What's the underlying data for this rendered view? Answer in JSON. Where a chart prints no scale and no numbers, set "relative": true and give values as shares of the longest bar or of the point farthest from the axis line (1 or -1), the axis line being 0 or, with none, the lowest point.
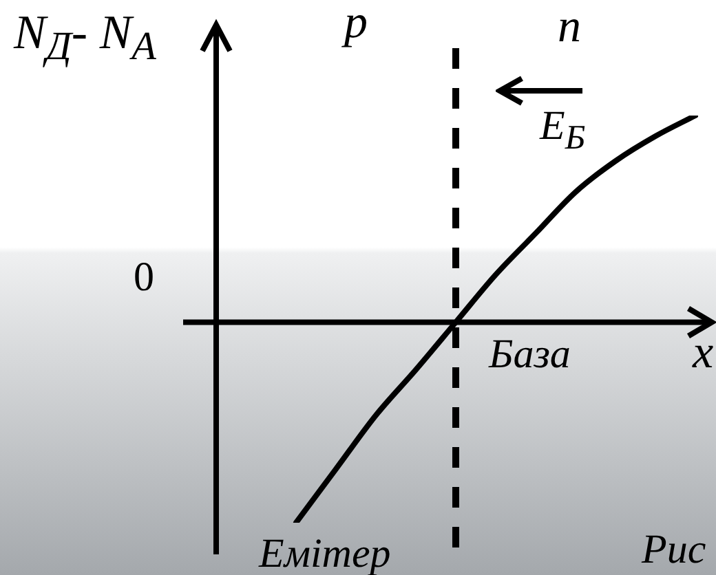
{
  "chart_data": {
    "type": "line",
    "ylabel": "N$_{Д}$- N$_{А}$",
    "xlabel": "x",
    "categories": [
      null,
      null,
      null,
      null,
      null,
      null,
      null,
      null,
      null,
      null,
      null,
      null,
      null
    ],
    "series": [
      {
        "color": "#000000",
        "values": [
          null,
          null,
          -0.97,
          -0.71,
          -0.45,
          -0.23,
          0,
          0.23,
          0.43,
          0.63,
          0.78,
          0.9,
          1
        ]
      }
    ],
    "relative": true,
    "annotations": [
      "p",
      "n",
      "E$_{Б}$",
      "База",
      "Емітер",
      "0",
      "Рис"
    ],
    "legend": false,
    "grid": false,
    "marker": "none",
    "line_style": "solid"
  }
}
